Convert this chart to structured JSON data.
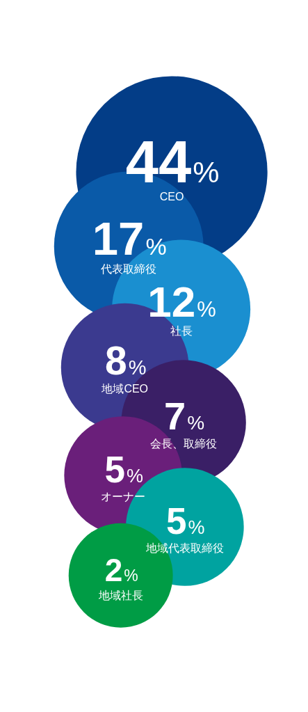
{
  "chart_data": {
    "type": "other",
    "categories": [
      "CEO",
      "代表取締役",
      "社長",
      "地域CEO",
      "会長、取締役",
      "オーナー",
      "地域代表取締役",
      "地域社長"
    ],
    "values": [
      44,
      17,
      12,
      8,
      7,
      5,
      5,
      2
    ],
    "colors": [
      "#033d87",
      "#0a5aa8",
      "#1a8fd0",
      "#3b3a8f",
      "#3a1f66",
      "#6a1f7a",
      "#00a3a0",
      "#009c45"
    ],
    "value_labels": [
      "44%",
      "17%",
      "12%",
      "8%",
      "7%",
      "5%",
      "5%",
      "2%"
    ]
  }
}
